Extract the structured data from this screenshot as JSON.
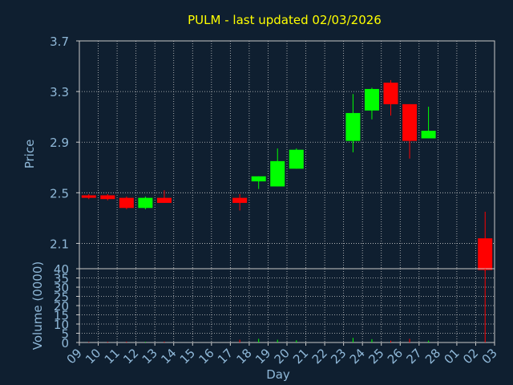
{
  "chart_data": {
    "type": "candlestick",
    "title": "PULM - last updated 02/03/2026",
    "xlabel": "Day",
    "ylabel": "Price",
    "volume_label": "Volume (0000)",
    "x_ticks": [
      "09",
      "10",
      "11",
      "12",
      "13",
      "14",
      "15",
      "16",
      "17",
      "18",
      "19",
      "20",
      "21",
      "22",
      "23",
      "24",
      "25",
      "26",
      "27",
      "28",
      "01",
      "02",
      "03"
    ],
    "price_ticks": [
      2.1,
      2.5,
      2.9,
      3.3,
      3.7
    ],
    "price_ylim": [
      1.9,
      3.7
    ],
    "volume_ticks": [
      0,
      5,
      10,
      15,
      20,
      25,
      30,
      35,
      40
    ],
    "volume_ylim": [
      0,
      40
    ],
    "grid": true,
    "colors": {
      "background": "#0f1f30",
      "grid": "#c8c8c8",
      "axis_text": "#8fb8d8",
      "title": "#ffff00",
      "up": "#00ff00",
      "down": "#ff0000"
    },
    "candles": [
      {
        "day": "09",
        "open": 2.48,
        "close": 2.46,
        "high": 2.49,
        "low": 2.45,
        "volume": 0.3
      },
      {
        "day": "10",
        "open": 2.48,
        "close": 2.45,
        "high": 2.49,
        "low": 2.44,
        "volume": 0.4
      },
      {
        "day": "11",
        "open": 2.46,
        "close": 2.38,
        "high": 2.47,
        "low": 2.37,
        "volume": 0.5
      },
      {
        "day": "12",
        "open": 2.38,
        "close": 2.46,
        "high": 2.47,
        "low": 2.37,
        "volume": 0.4
      },
      {
        "day": "13",
        "open": 2.46,
        "close": 2.42,
        "high": 2.52,
        "low": 2.42,
        "volume": 0.5
      },
      {
        "day": "17",
        "open": 2.46,
        "close": 2.42,
        "high": 2.49,
        "low": 2.36,
        "volume": 1.5
      },
      {
        "day": "18",
        "open": 2.59,
        "close": 2.63,
        "high": 2.63,
        "low": 2.53,
        "volume": 2.0
      },
      {
        "day": "19",
        "open": 2.55,
        "close": 2.75,
        "high": 2.85,
        "low": 2.55,
        "volume": 1.5
      },
      {
        "day": "20",
        "open": 2.69,
        "close": 2.84,
        "high": 2.85,
        "low": 2.69,
        "volume": 1.2
      },
      {
        "day": "23",
        "open": 2.91,
        "close": 3.13,
        "high": 3.28,
        "low": 2.82,
        "volume": 2.5
      },
      {
        "day": "24",
        "open": 3.15,
        "close": 3.32,
        "high": 3.33,
        "low": 3.08,
        "volume": 1.8
      },
      {
        "day": "25",
        "open": 3.37,
        "close": 3.2,
        "high": 3.39,
        "low": 3.11,
        "volume": 1.0
      },
      {
        "day": "26",
        "open": 3.2,
        "close": 2.91,
        "high": 3.2,
        "low": 2.77,
        "volume": 2.0
      },
      {
        "day": "27",
        "open": 2.93,
        "close": 2.99,
        "high": 3.18,
        "low": 2.93,
        "volume": 1.0
      },
      {
        "day": "02",
        "open": 2.14,
        "close": 1.89,
        "high": 2.35,
        "low": 1.88,
        "volume": 40.0
      }
    ]
  }
}
